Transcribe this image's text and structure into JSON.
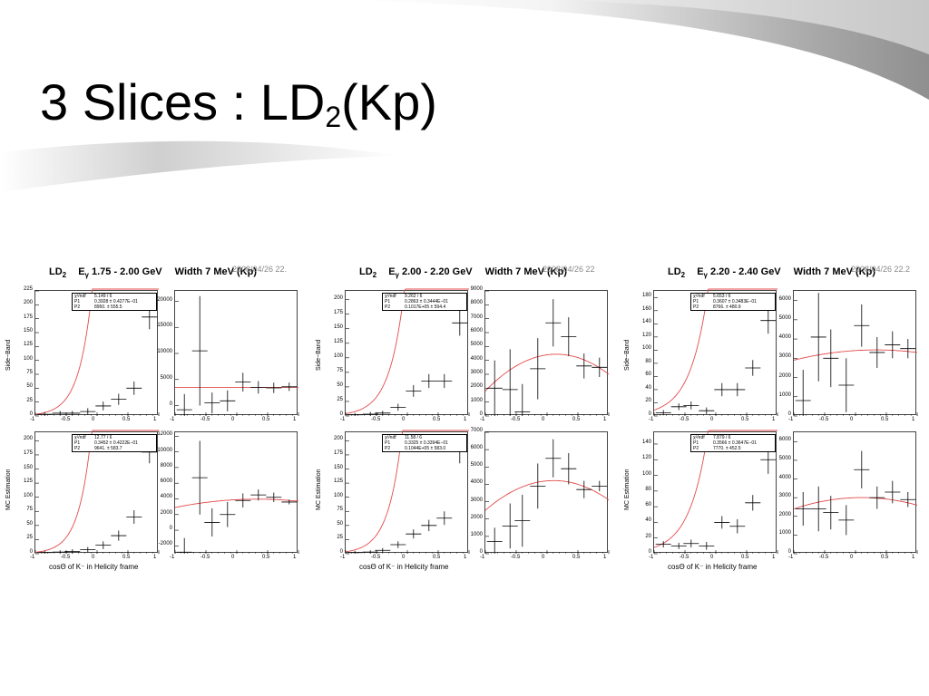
{
  "title": {
    "main": "3 Slices : LD",
    "sub": "2",
    "suffix": "(Kp)"
  },
  "colors": {
    "fit": "#e34a4a",
    "data": "#000000",
    "frame": "#444444",
    "swoosh": "#9a9a9a"
  },
  "chart_data": [
    {
      "type": "scatter",
      "header": {
        "ld": "LD",
        "ld_sub": "2",
        "egamma": "E",
        "egamma_sub": "γ",
        "range": "1.75 - 2.00 GeV",
        "width": "Width 7 MeV (Kp)"
      },
      "stamp": "2008/04/26   22.",
      "xlabel": "cosΘ of K⁻ in Helicity frame",
      "panels": [
        {
          "ylabel": "Side−Band",
          "ylim": [
            0,
            225
          ],
          "yticks": [
            0,
            25,
            50,
            75,
            100,
            125,
            150,
            175,
            200,
            225
          ],
          "x": [
            -0.85,
            -0.6,
            -0.4,
            -0.15,
            0.1,
            0.35,
            0.6,
            0.85
          ],
          "y": [
            3,
            5,
            5,
            8,
            18,
            30,
            50,
            178
          ],
          "yerr": [
            4,
            4,
            4,
            6,
            8,
            10,
            12,
            22
          ],
          "fit": {
            "a": 3.0,
            "b": 4.7
          },
          "stats": [
            {
              "k": "χ²/ndf",
              "v": "5.149  /   6"
            },
            {
              "k": "P1",
              "v": "0.3928 ±  0.4277E−01"
            },
            {
              "k": "P2",
              "v": "8950.  ±       555.5"
            }
          ]
        },
        {
          "ylim": [
            -2000,
            22000
          ],
          "yticks": [
            0,
            5000,
            10000,
            15000,
            20000
          ],
          "x": [
            -0.85,
            -0.6,
            -0.4,
            -0.15,
            0.1,
            0.35,
            0.6,
            0.85
          ],
          "y": [
            -800,
            10500,
            500,
            900,
            4500,
            3500,
            3400,
            3600
          ],
          "yerr": [
            3000,
            10500,
            2000,
            2000,
            1800,
            1200,
            1000,
            800
          ],
          "fit": {
            "c0": 3500,
            "c1": 0,
            "c2": 0
          }
        },
        {
          "ylabel": "MC Estimation",
          "ylim": [
            0,
            215
          ],
          "yticks": [
            0,
            25,
            50,
            75,
            100,
            125,
            150,
            175,
            200
          ],
          "x": [
            -0.85,
            -0.6,
            -0.4,
            -0.15,
            0.1,
            0.35,
            0.6,
            0.85
          ],
          "y": [
            2,
            3,
            4,
            7,
            15,
            32,
            65,
            180
          ],
          "yerr": [
            3,
            3,
            4,
            5,
            7,
            9,
            12,
            20
          ],
          "fit": {
            "a": 2.5,
            "b": 4.9
          },
          "stats": [
            {
              "k": "χ²/ndf",
              "v": "12.77  /   6"
            },
            {
              "k": "P1",
              "v": "0.3452 ±  0.4222E−01"
            },
            {
              "k": "P2",
              "v": "9641.  ±       583.7"
            }
          ]
        },
        {
          "ylim": [
            -3000,
            12500
          ],
          "yticks": [
            -2000,
            0,
            2000,
            4000,
            6000,
            8000,
            10000,
            12000
          ],
          "x": [
            -0.85,
            -0.6,
            -0.4,
            -0.15,
            0.1,
            0.35,
            0.6,
            0.85
          ],
          "y": [
            -2800,
            6700,
            1000,
            2000,
            3800,
            4500,
            4200,
            3600
          ],
          "yerr": [
            1800,
            4700,
            1800,
            1600,
            900,
            700,
            600,
            300
          ],
          "fit": {
            "c0": 3900,
            "c1": 400,
            "c2": -600
          }
        }
      ]
    },
    {
      "type": "scatter",
      "header": {
        "ld": "LD",
        "ld_sub": "2",
        "egamma": "E",
        "egamma_sub": "γ",
        "range": "2.00 - 2.20 GeV",
        "width": "Width 7 MeV (Kp)"
      },
      "stamp": "2008/04/26   22",
      "xlabel": "cosΘ of K⁻ in Helicity frame",
      "panels": [
        {
          "ylabel": "Side−Band",
          "ylim": [
            0,
            215
          ],
          "yticks": [
            0,
            25,
            50,
            75,
            100,
            125,
            150,
            175,
            200
          ],
          "x": [
            -0.85,
            -0.6,
            -0.4,
            -0.15,
            0.1,
            0.35,
            0.6,
            0.85
          ],
          "y": [
            2,
            3,
            5,
            15,
            43,
            60,
            60,
            160
          ],
          "yerr": [
            3,
            4,
            4,
            6,
            10,
            12,
            12,
            22
          ],
          "fit": {
            "a": 4.0,
            "b": 4.2
          },
          "stats": [
            {
              "k": "χ²/ndf",
              "v": "9.262  /   6"
            },
            {
              "k": "P1",
              "v": "0.2863 ±  0.3444E−01"
            },
            {
              "k": "P2",
              "v": "0.1017E+05 ±   594.4"
            }
          ]
        },
        {
          "ylim": [
            0,
            9000
          ],
          "yticks": [
            0,
            1000,
            2000,
            3000,
            4000,
            5000,
            6000,
            7000,
            8000,
            9000
          ],
          "x": [
            -0.85,
            -0.6,
            -0.4,
            -0.15,
            0.1,
            0.35,
            0.6,
            0.85
          ],
          "y": [
            2000,
            1900,
            300,
            3400,
            6700,
            5700,
            3600,
            3500
          ],
          "yerr": [
            2000,
            2900,
            2000,
            2200,
            1700,
            1400,
            900,
            700
          ],
          "fit": {
            "c0": 4400,
            "c1": 600,
            "c2": -2000
          }
        },
        {
          "ylabel": "MC Estimation",
          "ylim": [
            0,
            215
          ],
          "yticks": [
            0,
            25,
            50,
            75,
            100,
            125,
            150,
            175,
            200
          ],
          "x": [
            -0.85,
            -0.6,
            -0.4,
            -0.15,
            0.1,
            0.35,
            0.6,
            0.85
          ],
          "y": [
            2,
            3,
            6,
            16,
            35,
            50,
            63,
            182
          ],
          "yerr": [
            3,
            3,
            4,
            6,
            8,
            10,
            12,
            22
          ],
          "fit": {
            "a": 3.5,
            "b": 4.5
          },
          "stats": [
            {
              "k": "χ²/ndf",
              "v": "11.58  /   6"
            },
            {
              "k": "P1",
              "v": "0.3325 ±  0.3394E−01"
            },
            {
              "k": "P2",
              "v": "0.1044E+05 ±   583.0"
            }
          ]
        },
        {
          "ylim": [
            0,
            7000
          ],
          "yticks": [
            0,
            1000,
            2000,
            3000,
            4000,
            5000,
            6000,
            7000
          ],
          "x": [
            -0.85,
            -0.6,
            -0.4,
            -0.15,
            0.1,
            0.35,
            0.6,
            0.85
          ],
          "y": [
            700,
            1600,
            1900,
            3900,
            5500,
            4900,
            3700,
            3900
          ],
          "yerr": [
            800,
            1300,
            1500,
            1300,
            1100,
            900,
            500,
            300
          ],
          "fit": {
            "c0": 4200,
            "c1": 300,
            "c2": -1400
          }
        }
      ]
    },
    {
      "type": "scatter",
      "header": {
        "ld": "LD",
        "ld_sub": "2",
        "egamma": "E",
        "egamma_sub": "γ",
        "range": "2.20 - 2.40 GeV",
        "width": "Width 7 MeV (Kp)"
      },
      "stamp": "2008/04/26   22.2",
      "xlabel": "cosΘ of K⁻ in Helicity frame",
      "panels": [
        {
          "ylabel": "Side−Band",
          "ylim": [
            0,
            190
          ],
          "yticks": [
            0,
            20,
            40,
            60,
            80,
            100,
            120,
            140,
            160,
            180
          ],
          "x": [
            -0.85,
            -0.6,
            -0.4,
            -0.15,
            0.1,
            0.35,
            0.6,
            0.85
          ],
          "y": [
            5,
            14,
            16,
            8,
            40,
            40,
            73,
            145
          ],
          "yerr": [
            4,
            5,
            6,
            5,
            10,
            10,
            12,
            20
          ],
          "fit": {
            "a": 9.0,
            "b": 3.5
          },
          "stats": [
            {
              "k": "χ²/ndf",
              "v": "5.653  /   6"
            },
            {
              "k": "P1",
              "v": "0.3607 ±  0.3483E−01"
            },
            {
              "k": "P2",
              "v": "8766.  ±       480.9"
            }
          ]
        },
        {
          "ylim": [
            0,
            6500
          ],
          "yticks": [
            0,
            1000,
            2000,
            3000,
            4000,
            5000,
            6000
          ],
          "x": [
            -0.85,
            -0.6,
            -0.4,
            -0.15,
            0.1,
            0.35,
            0.6,
            0.85
          ],
          "y": [
            800,
            4100,
            3000,
            1600,
            4700,
            3300,
            3700,
            3500
          ],
          "yerr": [
            1600,
            2300,
            1500,
            1400,
            1100,
            800,
            700,
            500
          ],
          "fit": {
            "c0": 3400,
            "c1": 200,
            "c2": -300
          }
        },
        {
          "ylabel": "MC Estimation",
          "ylim": [
            0,
            155
          ],
          "yticks": [
            0,
            20,
            40,
            60,
            80,
            100,
            120,
            140
          ],
          "x": [
            -0.85,
            -0.6,
            -0.4,
            -0.15,
            0.1,
            0.35,
            0.6,
            0.85
          ],
          "y": [
            12,
            10,
            13,
            10,
            40,
            35,
            65,
            120
          ],
          "yerr": [
            4,
            4,
            5,
            5,
            8,
            9,
            10,
            18
          ],
          "fit": {
            "a": 8.0,
            "b": 3.4
          },
          "stats": [
            {
              "k": "χ²/ndf",
              "v": "7.879  /   6"
            },
            {
              "k": "P1",
              "v": "0.3566 ±  0.3647E−01"
            },
            {
              "k": "P2",
              "v": "7770.  ±       452.5"
            }
          ]
        },
        {
          "ylim": [
            0,
            6500
          ],
          "yticks": [
            0,
            1000,
            2000,
            3000,
            4000,
            5000,
            6000
          ],
          "x": [
            -0.85,
            -0.6,
            -0.4,
            -0.15,
            0.1,
            0.35,
            0.6,
            0.85
          ],
          "y": [
            2400,
            2400,
            2200,
            1800,
            4500,
            3000,
            3300,
            2900
          ],
          "yerr": [
            900,
            1200,
            900,
            800,
            1000,
            600,
            600,
            400
          ],
          "fit": {
            "c0": 3000,
            "c1": 100,
            "c2": -500
          }
        }
      ]
    }
  ]
}
